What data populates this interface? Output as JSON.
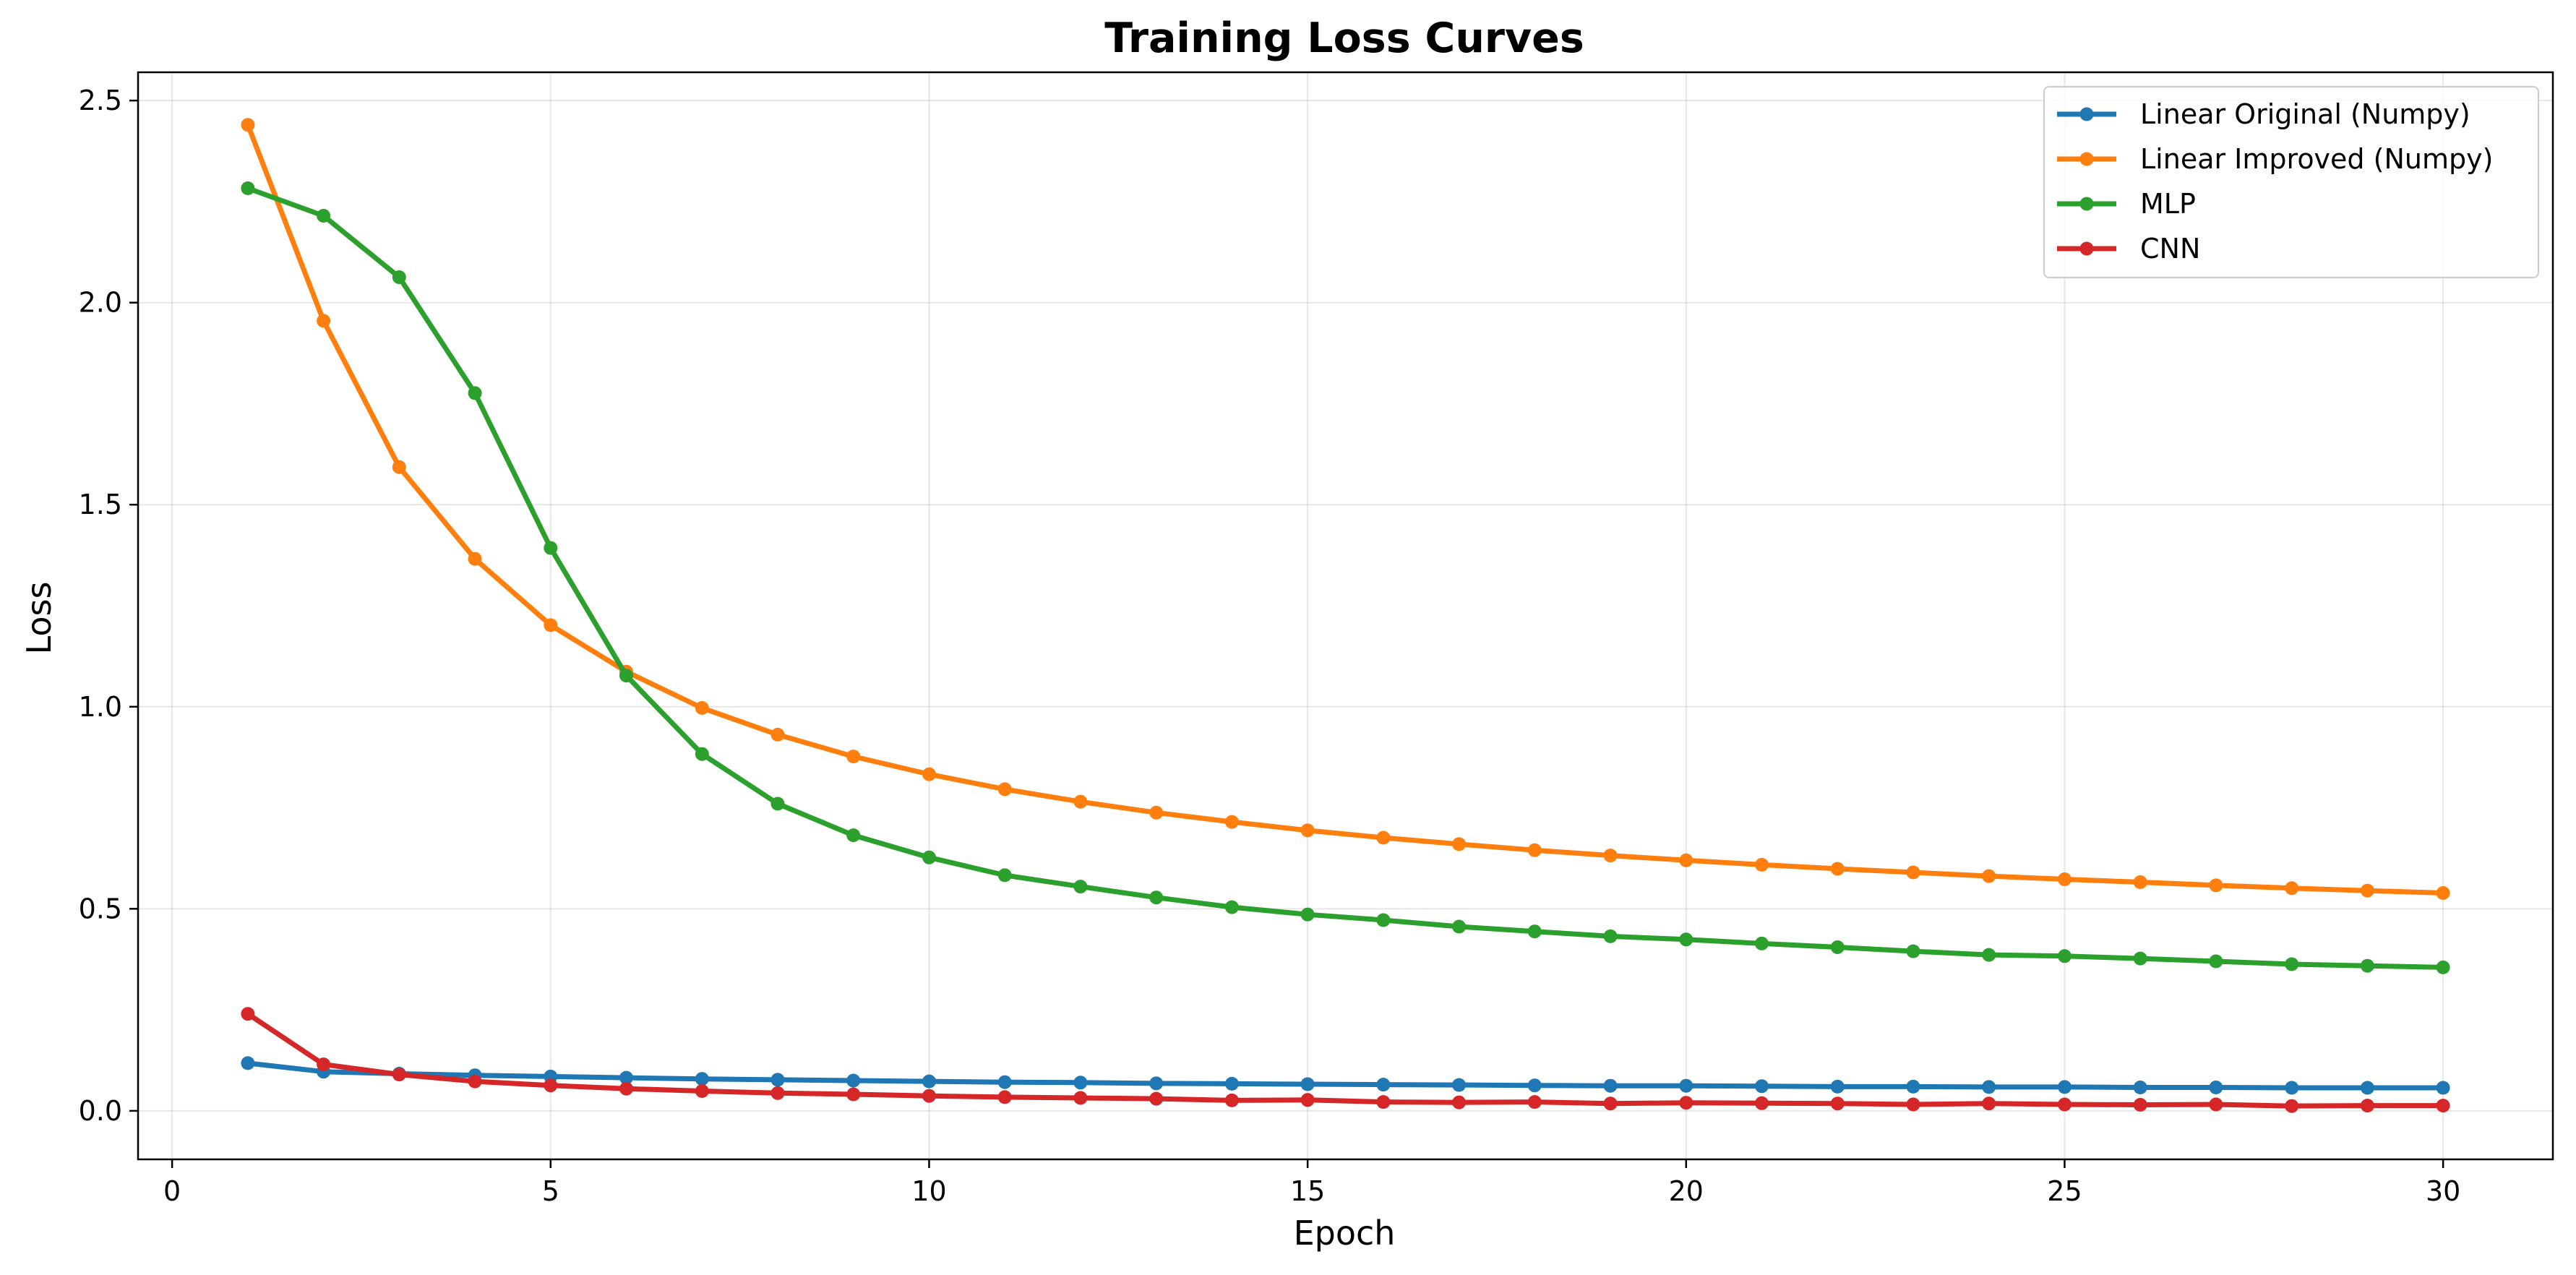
{
  "chart_data": {
    "type": "line",
    "title": "Training Loss Curves",
    "xlabel": "Epoch",
    "ylabel": "Loss",
    "xlim": [
      -0.45,
      31.45
    ],
    "ylim": [
      -0.12,
      2.57
    ],
    "xticks": [
      0,
      5,
      10,
      15,
      20,
      25,
      30
    ],
    "xtick_labels": [
      "0",
      "5",
      "10",
      "15",
      "20",
      "25",
      "30"
    ],
    "yticks": [
      0.0,
      0.5,
      1.0,
      1.5,
      2.0,
      2.5
    ],
    "ytick_labels": [
      "0.0",
      "0.5",
      "1.0",
      "1.5",
      "2.0",
      "2.5"
    ],
    "grid": true,
    "legend_position": "top-right",
    "x": [
      1,
      2,
      3,
      4,
      5,
      6,
      7,
      8,
      9,
      10,
      11,
      12,
      13,
      14,
      15,
      16,
      17,
      18,
      19,
      20,
      21,
      22,
      23,
      24,
      25,
      26,
      27,
      28,
      29,
      30
    ],
    "series": [
      {
        "name": "Linear Original (Numpy)",
        "color": "#1f77b4",
        "values": [
          0.118,
          0.097,
          0.092,
          0.088,
          0.085,
          0.082,
          0.079,
          0.077,
          0.075,
          0.073,
          0.071,
          0.07,
          0.068,
          0.067,
          0.066,
          0.065,
          0.064,
          0.063,
          0.062,
          0.062,
          0.061,
          0.06,
          0.06,
          0.059,
          0.059,
          0.058,
          0.058,
          0.057,
          0.057,
          0.057
        ]
      },
      {
        "name": "Linear Improved (Numpy)",
        "color": "#ff7f0e",
        "values": [
          2.44,
          1.955,
          1.593,
          1.366,
          1.202,
          1.087,
          0.997,
          0.931,
          0.877,
          0.833,
          0.796,
          0.765,
          0.738,
          0.715,
          0.694,
          0.676,
          0.66,
          0.645,
          0.632,
          0.62,
          0.609,
          0.599,
          0.59,
          0.581,
          0.573,
          0.566,
          0.558,
          0.551,
          0.545,
          0.539
        ]
      },
      {
        "name": "MLP",
        "color": "#2ca02c",
        "values": [
          2.283,
          2.215,
          2.063,
          1.776,
          1.393,
          1.077,
          0.883,
          0.76,
          0.682,
          0.627,
          0.583,
          0.555,
          0.528,
          0.504,
          0.486,
          0.472,
          0.456,
          0.444,
          0.432,
          0.424,
          0.414,
          0.405,
          0.395,
          0.386,
          0.383,
          0.377,
          0.37,
          0.363,
          0.359,
          0.355
        ]
      },
      {
        "name": "CNN",
        "color": "#d62728",
        "values": [
          0.24,
          0.115,
          0.09,
          0.073,
          0.063,
          0.055,
          0.049,
          0.044,
          0.041,
          0.037,
          0.034,
          0.032,
          0.03,
          0.026,
          0.027,
          0.022,
          0.021,
          0.022,
          0.018,
          0.02,
          0.019,
          0.018,
          0.016,
          0.018,
          0.016,
          0.015,
          0.016,
          0.012,
          0.013,
          0.013
        ]
      }
    ]
  }
}
